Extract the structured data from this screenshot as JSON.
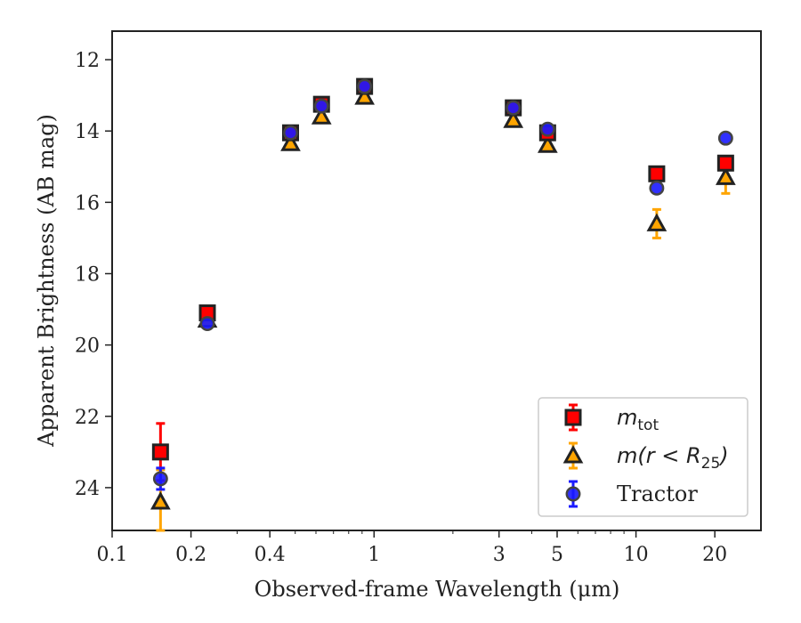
{
  "chart_data": {
    "type": "scatter",
    "xlabel": "Observed-frame Wavelength (μm)",
    "ylabel": "Apparent Brightness (AB mag)",
    "x_scale": "log",
    "xlim": [
      0.1,
      30
    ],
    "ylim": [
      25.2,
      11.2
    ],
    "y_inverted": true,
    "x_ticks": [
      0.1,
      0.2,
      0.4,
      1,
      3,
      5,
      10,
      20
    ],
    "x_tick_labels": [
      "0.1",
      "0.2",
      "0.4",
      "1",
      "3",
      "5",
      "10",
      "20"
    ],
    "y_ticks": [
      12,
      14,
      16,
      18,
      20,
      22,
      24
    ],
    "y_tick_labels": [
      "12",
      "14",
      "16",
      "18",
      "20",
      "22",
      "24"
    ],
    "grid": false,
    "legend_position": "bottom-right",
    "series": [
      {
        "name": "m_tot",
        "legend_label": "m_tot",
        "marker": "square",
        "face_color": "#ff0000",
        "edge_color": "#222222",
        "error_color": "#ff0000",
        "x": [
          0.153,
          0.231,
          0.48,
          0.63,
          0.92,
          3.4,
          4.6,
          12.0,
          22.0
        ],
        "y": [
          23.0,
          19.1,
          14.05,
          13.25,
          12.75,
          13.35,
          14.05,
          15.2,
          14.9
        ],
        "yerr": [
          0.8,
          0.1,
          0.05,
          0.05,
          0.05,
          0.05,
          0.05,
          0.1,
          0.15
        ]
      },
      {
        "name": "m(r<R25)",
        "legend_label": "m(r<R25)",
        "marker": "triangle",
        "face_color": "#ffa500",
        "edge_color": "#222222",
        "error_color": "#ffa500",
        "x": [
          0.153,
          0.231,
          0.48,
          0.63,
          0.92,
          3.4,
          4.6,
          12.0,
          22.0
        ],
        "y": [
          24.4,
          19.3,
          14.35,
          13.6,
          13.05,
          13.7,
          14.4,
          16.6,
          15.3
        ],
        "yerr": [
          0.9,
          0.1,
          0.05,
          0.05,
          0.05,
          0.05,
          0.05,
          0.4,
          0.45
        ]
      },
      {
        "name": "Tractor",
        "legend_label": "Tractor",
        "marker": "circle",
        "face_color": "#1a1aff",
        "edge_color": "#444444",
        "error_color": "#1a1aff",
        "x": [
          0.153,
          0.231,
          0.48,
          0.63,
          0.92,
          3.4,
          4.6,
          12.0,
          22.0
        ],
        "y": [
          23.75,
          19.4,
          14.05,
          13.3,
          12.75,
          13.35,
          13.95,
          15.6,
          14.2
        ],
        "yerr": [
          0.3,
          0.05,
          0.03,
          0.03,
          0.03,
          0.03,
          0.03,
          0.05,
          0.05
        ]
      }
    ]
  }
}
